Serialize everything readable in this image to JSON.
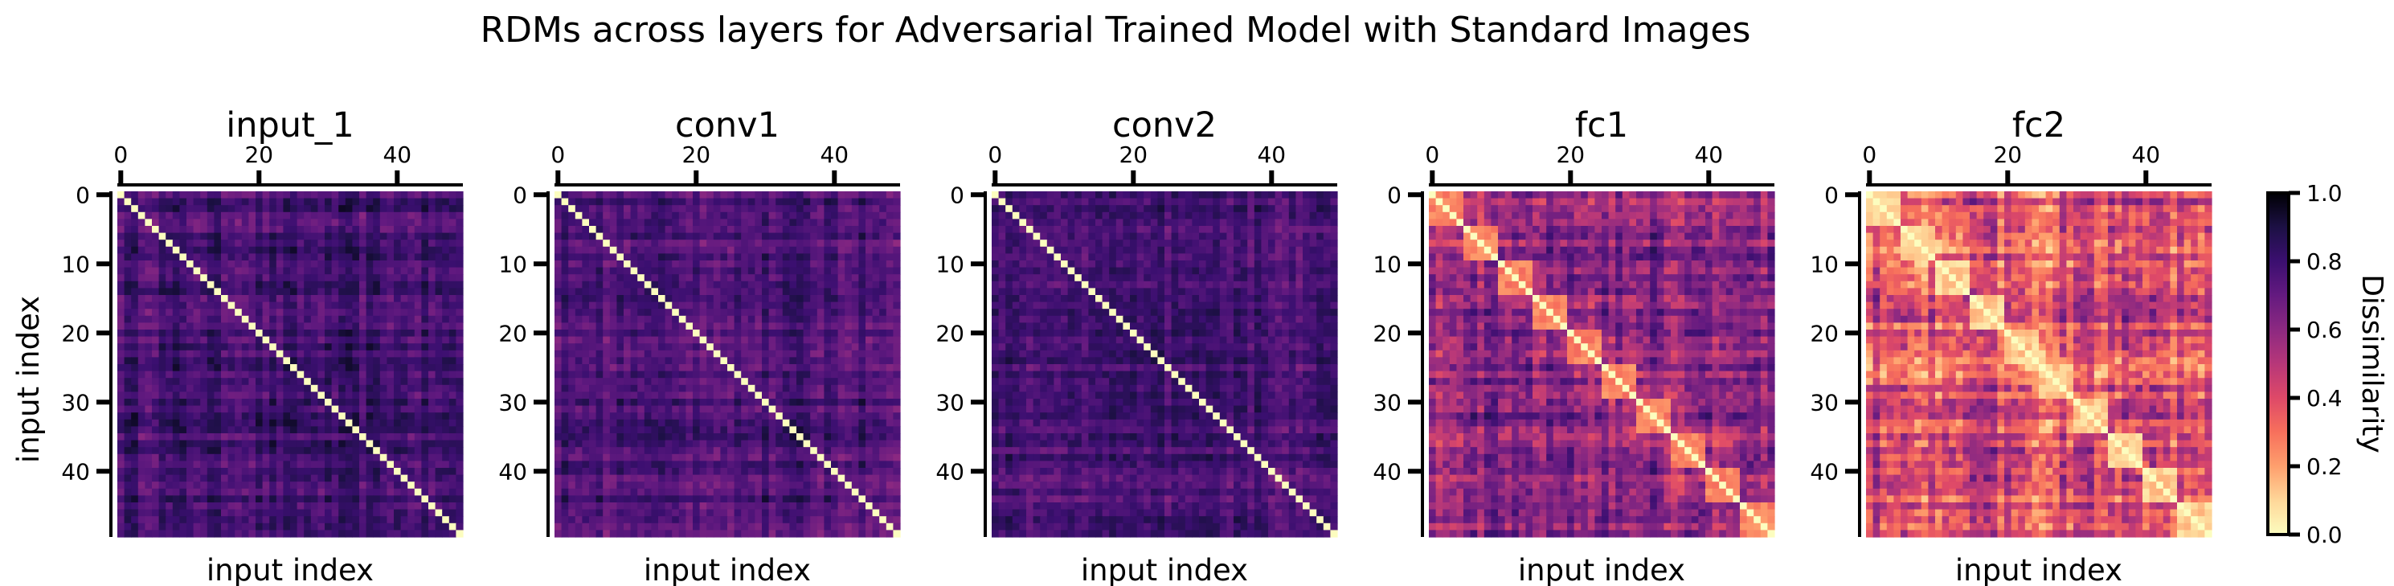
{
  "figure": {
    "title": "RDMs across layers for Adversarial Trained Model with Standard Images",
    "ylabel": "input index",
    "xlabel": "input index"
  },
  "colorbar": {
    "label": "Dissimilarity",
    "ticks": [
      "0.0",
      "0.2",
      "0.4",
      "0.6",
      "0.8",
      "1.0"
    ],
    "range": [
      0,
      1
    ],
    "colormap": "magma_r"
  },
  "chart_data": [
    {
      "type": "heatmap",
      "title": "input_1",
      "xticks": [
        "0",
        "20",
        "40"
      ],
      "yticks": [
        "0",
        "10",
        "20",
        "30",
        "40"
      ],
      "n": 50,
      "xlabel": "input index",
      "ylabel": "input index",
      "value_range": [
        0,
        1
      ],
      "diagonal": 0,
      "typical_offdiag": 0.78,
      "offdiag_spread": 0.12,
      "block_sizes": [],
      "within_block": null
    },
    {
      "type": "heatmap",
      "title": "conv1",
      "xticks": [
        "0",
        "20",
        "40"
      ],
      "yticks": [
        "0",
        "10",
        "20",
        "30",
        "40"
      ],
      "n": 50,
      "xlabel": "input index",
      "ylabel": "",
      "value_range": [
        0,
        1
      ],
      "diagonal": 0,
      "typical_offdiag": 0.76,
      "offdiag_spread": 0.12,
      "block_sizes": [],
      "within_block": null
    },
    {
      "type": "heatmap",
      "title": "conv2",
      "xticks": [
        "0",
        "20",
        "40"
      ],
      "yticks": [
        "0",
        "10",
        "20",
        "30",
        "40"
      ],
      "n": 50,
      "xlabel": "input index",
      "ylabel": "",
      "value_range": [
        0,
        1
      ],
      "diagonal": 0,
      "typical_offdiag": 0.76,
      "offdiag_spread": 0.12,
      "block_sizes": [],
      "within_block": null
    },
    {
      "type": "heatmap",
      "title": "fc1",
      "xticks": [
        "0",
        "20",
        "40"
      ],
      "yticks": [
        "0",
        "10",
        "20",
        "30",
        "40"
      ],
      "n": 50,
      "xlabel": "input index",
      "ylabel": "",
      "value_range": [
        0,
        1
      ],
      "diagonal": 0,
      "typical_offdiag": 0.62,
      "offdiag_spread": 0.2,
      "block_sizes": [
        5,
        5,
        5,
        5,
        5,
        5,
        5,
        5,
        5,
        5
      ],
      "within_block": 0.2
    },
    {
      "type": "heatmap",
      "title": "fc2",
      "xticks": [
        "0",
        "20",
        "40"
      ],
      "yticks": [
        "0",
        "10",
        "20",
        "30",
        "40"
      ],
      "n": 50,
      "xlabel": "input index",
      "ylabel": "",
      "value_range": [
        0,
        1
      ],
      "diagonal": 0,
      "typical_offdiag": 0.42,
      "offdiag_spread": 0.25,
      "block_sizes": [
        5,
        5,
        5,
        5,
        5,
        5,
        5,
        5,
        5,
        5
      ],
      "within_block": 0.05
    }
  ]
}
